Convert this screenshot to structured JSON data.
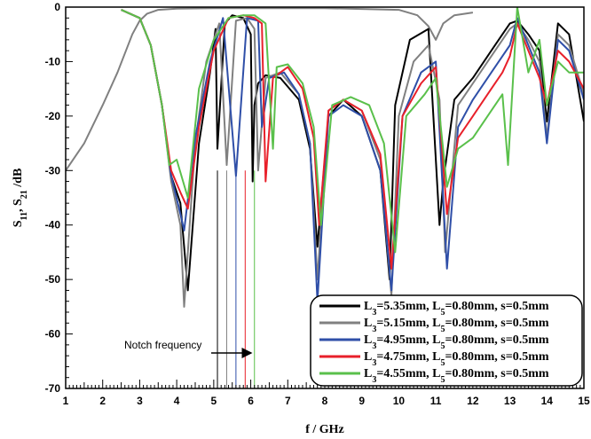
{
  "chart_data": {
    "type": "line",
    "xlabel": "f / GHz",
    "ylabel_parts": [
      "S",
      "11",
      ", S",
      "21",
      " /dB"
    ],
    "xlim": [
      1,
      15
    ],
    "ylim": [
      -70,
      0
    ],
    "x_ticks": [
      "1",
      "2",
      "3",
      "4",
      "5",
      "6",
      "7",
      "8",
      "9",
      "10",
      "11",
      "12",
      "13",
      "14",
      "15"
    ],
    "y_ticks": [
      "0",
      "-10",
      "-20",
      "-30",
      "-40",
      "-50",
      "-60",
      "-70"
    ],
    "grid": false,
    "legend_position": "bottom-right",
    "annotation": {
      "text": "Notch frequency"
    },
    "notch_markers_x": [
      5.1,
      5.35,
      5.6,
      5.85,
      6.1
    ],
    "s21_x": [
      1,
      1.5,
      2,
      2.4,
      2.8,
      3.0,
      3.2,
      3.5,
      4.0,
      5.0,
      8.0,
      10.0,
      10.5,
      10.8,
      11.0,
      11.2,
      11.5,
      12.0
    ],
    "s21_y": [
      -30,
      -25,
      -18,
      -12,
      -5,
      -2.5,
      -1.2,
      -0.5,
      -0.3,
      -0.2,
      -0.2,
      -0.5,
      -1.5,
      -3.5,
      -6,
      -3,
      -1.5,
      -1
    ],
    "series": [
      {
        "label_parts": [
          "L",
          "3",
          "=5.35mm, L",
          "5",
          "=0.80mm, s=0.5mm"
        ],
        "color": "#000000",
        "x": [
          2.5,
          3.0,
          3.3,
          3.6,
          3.85,
          4.1,
          4.3,
          4.6,
          4.9,
          5.05,
          5.1,
          5.3,
          5.5,
          5.8,
          6.0,
          6.05,
          6.1,
          6.2,
          6.4,
          6.8,
          7.3,
          7.6,
          7.8,
          8.1,
          8.5,
          9.0,
          9.5,
          9.75,
          9.9,
          10.3,
          10.8,
          11.1,
          11.2,
          11.5,
          12.0,
          12.5,
          12.8,
          13.0,
          13.2,
          13.5,
          13.8,
          14.0,
          14.3,
          14.6,
          15.0
        ],
        "y": [
          -0.5,
          -2,
          -7,
          -18,
          -31,
          -36,
          -52,
          -25,
          -12,
          -4,
          -26,
          -3,
          -1.5,
          -2,
          -5,
          -32,
          -18,
          -14,
          -12.5,
          -13,
          -17,
          -26,
          -44,
          -20,
          -17,
          -20,
          -30,
          -50,
          -18,
          -6,
          -4,
          -40,
          -32,
          -17,
          -13,
          -8,
          -5,
          -3,
          -2.5,
          -5,
          -8,
          -21,
          -3,
          -5,
          -21
        ]
      },
      {
        "label_parts": [
          "L",
          "3",
          "=5.15mm, L",
          "5",
          "=0.80mm, s=0.5mm"
        ],
        "color": "#808080",
        "x": [
          2.5,
          3.0,
          3.3,
          3.6,
          3.85,
          4.1,
          4.2,
          4.5,
          4.8,
          5.15,
          5.35,
          5.6,
          5.9,
          6.1,
          6.2,
          6.4,
          6.8,
          7.3,
          7.6,
          7.8,
          8.1,
          8.5,
          9.0,
          9.5,
          9.8,
          10.0,
          10.4,
          10.8,
          11.1,
          11.25,
          11.6,
          12.0,
          12.5,
          12.8,
          13.0,
          13.2,
          13.5,
          13.8,
          14.0,
          14.3,
          14.6,
          15.0
        ],
        "y": [
          -0.5,
          -2,
          -7,
          -18,
          -32,
          -40,
          -55,
          -25,
          -10,
          -3,
          -29,
          -2.5,
          -2,
          -4,
          -30,
          -13,
          -12,
          -16,
          -25,
          -50,
          -19,
          -17,
          -19,
          -28,
          -53,
          -20,
          -10,
          -7,
          -17,
          -45,
          -18,
          -14,
          -9,
          -6,
          -4,
          -3,
          -6,
          -10,
          -24,
          -5,
          -7,
          -16
        ]
      },
      {
        "label_parts": [
          "L",
          "3",
          "=4.95mm, L",
          "5",
          "=0.80mm, s=0.5mm"
        ],
        "color": "#2f4fa8",
        "x": [
          2.5,
          3.0,
          3.3,
          3.6,
          3.85,
          4.1,
          4.2,
          4.5,
          4.9,
          5.25,
          5.6,
          5.9,
          6.2,
          6.3,
          6.5,
          6.9,
          7.3,
          7.6,
          7.8,
          8.1,
          8.5,
          9.0,
          9.5,
          9.8,
          10.1,
          10.6,
          11.0,
          11.3,
          11.6,
          12.0,
          12.5,
          12.8,
          13.0,
          13.2,
          13.5,
          13.8,
          14.0,
          14.3,
          14.6,
          15.0
        ],
        "y": [
          -0.5,
          -2,
          -7,
          -18,
          -31,
          -38,
          -41,
          -24,
          -10,
          -2,
          -31,
          -2,
          -2.5,
          -22,
          -13,
          -12,
          -16,
          -25,
          -54,
          -20,
          -18,
          -20,
          -30,
          -52,
          -20,
          -12,
          -10,
          -48,
          -22,
          -17,
          -12,
          -9,
          -7,
          -2,
          -7,
          -12,
          -25,
          -6,
          -8,
          -17
        ]
      },
      {
        "label_parts": [
          "L",
          "3",
          "=4.75mm, L",
          "5",
          "=0.80mm, s=0.5mm"
        ],
        "color": "#e8202a",
        "x": [
          2.5,
          3.0,
          3.3,
          3.6,
          3.85,
          4.1,
          4.3,
          4.6,
          5.0,
          5.4,
          5.8,
          6.1,
          6.3,
          6.4,
          6.6,
          7.0,
          7.4,
          7.7,
          7.85,
          8.1,
          8.5,
          9.0,
          9.5,
          9.8,
          10.1,
          10.6,
          11.0,
          11.3,
          11.6,
          12.0,
          12.5,
          12.8,
          13.0,
          13.2,
          13.5,
          13.8,
          14.0,
          14.3,
          14.6,
          15.0
        ],
        "y": [
          -0.5,
          -2,
          -7,
          -18,
          -30,
          -34,
          -37,
          -22,
          -8,
          -2,
          -1.5,
          -2,
          -3,
          -32,
          -13,
          -11,
          -15,
          -24,
          -40,
          -19,
          -17,
          -19,
          -27,
          -48,
          -20,
          -14,
          -11,
          -38,
          -24,
          -20,
          -15,
          -12,
          -9,
          -3,
          -8,
          -13,
          -18,
          -8,
          -10,
          -15
        ]
      },
      {
        "label_parts": [
          "L",
          "3",
          "=4.55mm, L",
          "5",
          "=0.80mm, s=0.5mm"
        ],
        "color": "#5ac04b",
        "x": [
          2.5,
          3.0,
          3.3,
          3.6,
          3.8,
          4.0,
          4.3,
          4.6,
          5.0,
          5.4,
          5.8,
          6.1,
          6.4,
          6.6,
          6.7,
          7.0,
          7.4,
          7.7,
          7.9,
          8.2,
          8.7,
          9.2,
          9.6,
          9.9,
          10.2,
          10.7,
          11.0,
          11.3,
          11.6,
          12.0,
          12.5,
          12.8,
          12.95,
          13.2,
          13.5,
          13.8,
          14.0,
          14.3,
          14.6,
          15.0
        ],
        "y": [
          -0.5,
          -2,
          -7,
          -18,
          -29,
          -28,
          -35,
          -15,
          -6,
          -2,
          -1.5,
          -1.5,
          -3,
          -26,
          -11,
          -10.5,
          -14,
          -22,
          -40,
          -18,
          -16.5,
          -18,
          -25,
          -45,
          -20,
          -16,
          -13,
          -33,
          -26,
          -24,
          -19,
          -16,
          -29,
          0,
          -12,
          -6,
          -18,
          -10,
          -12,
          -12
        ]
      }
    ]
  }
}
